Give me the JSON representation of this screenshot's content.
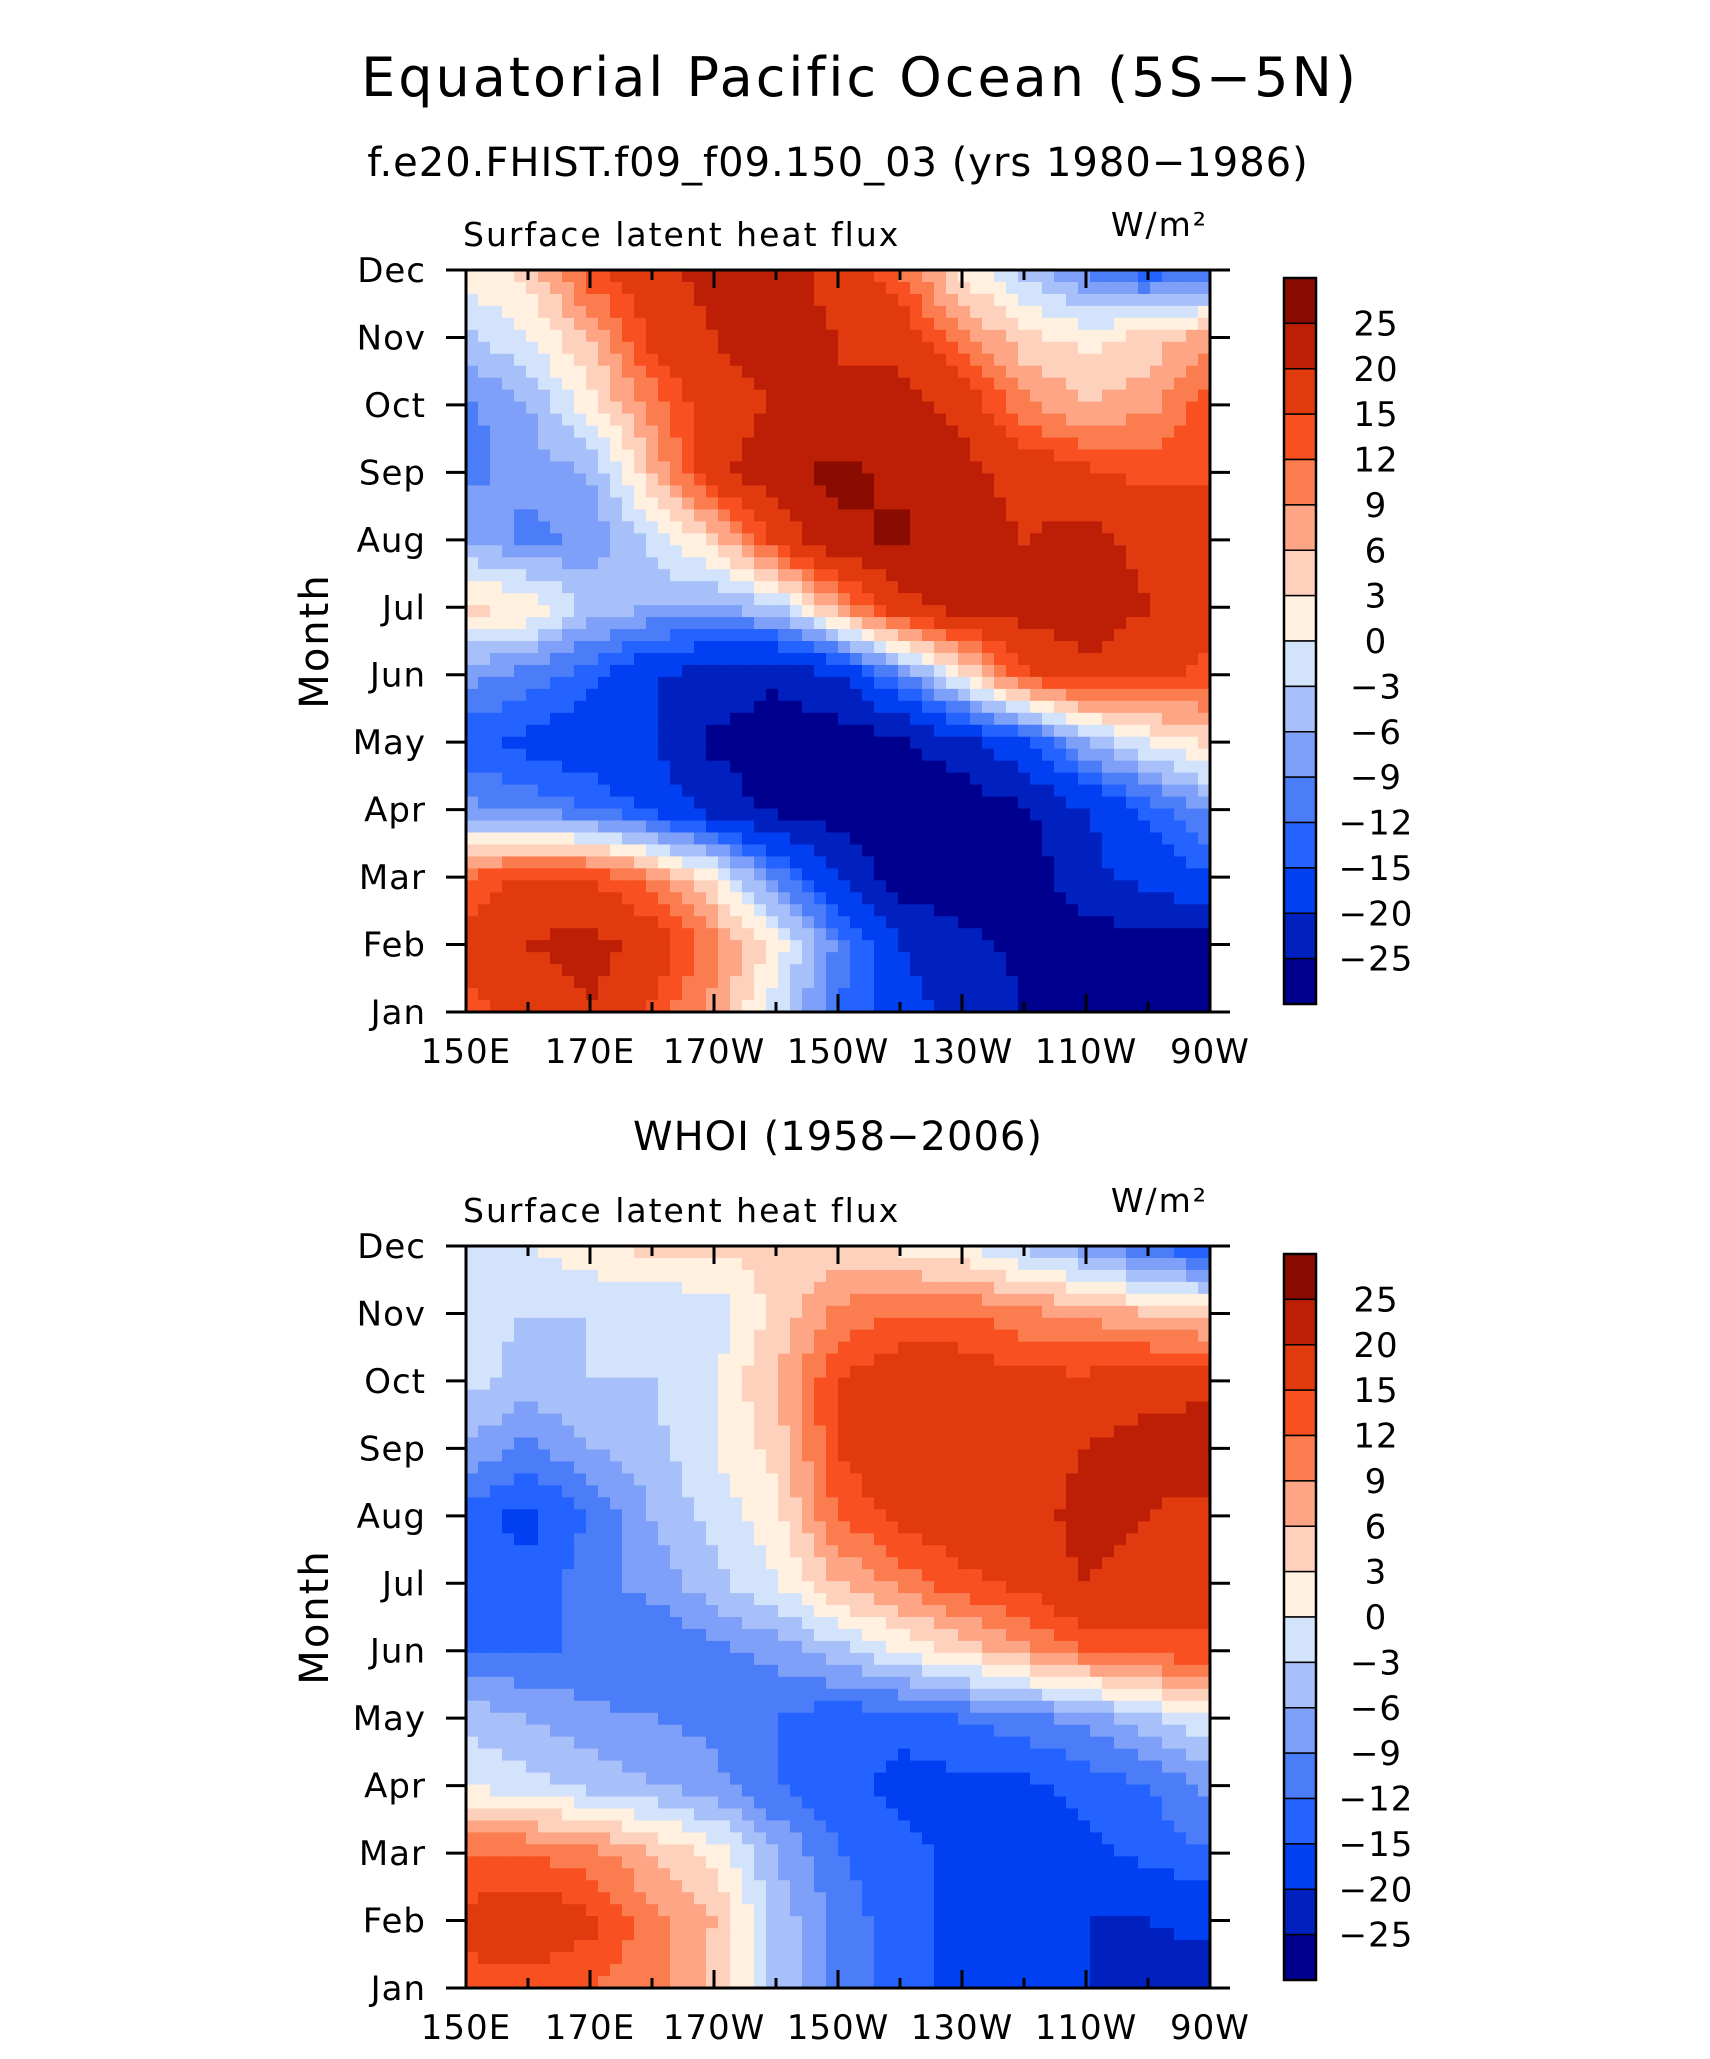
{
  "title": "Equatorial Pacific Ocean (5S−5N)",
  "colors": [
    "#00008f",
    "#0020bf",
    "#0040f2",
    "#2463ff",
    "#4c7df8",
    "#7ea0f8",
    "#a8c0fa",
    "#d4e3fc",
    "#fff0e0",
    "#fed1bc",
    "#fda584",
    "#fb7c4f",
    "#f85020",
    "#e23a0f",
    "#bd1f06",
    "#8a0c00"
  ],
  "chart_data": [
    {
      "type": "heatmap",
      "subtitle": "f.e20.FHIST.f09_f09.150_03 (yrs 1980−1986)",
      "panel_label": "Surface latent heat flux",
      "units": "W/m²",
      "xlabel": "",
      "ylabel": "Month",
      "x_ticks": [
        "150E",
        "170E",
        "170W",
        "150W",
        "130W",
        "110W",
        "90W"
      ],
      "y_ticks": [
        "Jan",
        "Feb",
        "Mar",
        "Apr",
        "May",
        "Jun",
        "Jul",
        "Aug",
        "Sep",
        "Oct",
        "Nov",
        "Dec"
      ],
      "colorbar_labels": [
        "25",
        "20",
        "15",
        "12",
        "9",
        "6",
        "3",
        "0",
        "−3",
        "−6",
        "−9",
        "−12",
        "−15",
        "−20",
        "−25"
      ],
      "levels": [
        -25,
        -20,
        -15,
        -12,
        -9,
        -6,
        -3,
        0,
        3,
        6,
        9,
        12,
        15,
        20,
        25
      ],
      "x": [
        "150E",
        "160E",
        "170E",
        "180",
        "170W",
        "160W",
        "150W",
        "140W",
        "130W",
        "120W",
        "110W",
        "100W",
        "90W"
      ],
      "y": [
        "Jan",
        "Feb",
        "Mar",
        "Apr",
        "May",
        "Jun",
        "Jul",
        "Aug",
        "Sep",
        "Oct",
        "Nov",
        "Dec"
      ],
      "values": [
        [
          14,
          16,
          20,
          14,
          8,
          -2,
          -12,
          -18,
          -22,
          -25,
          -27,
          -28,
          -28
        ],
        [
          16,
          20,
          22,
          18,
          10,
          2,
          -10,
          -20,
          -24,
          -26,
          -27,
          -28,
          -27
        ],
        [
          12,
          16,
          15,
          10,
          2,
          -10,
          -20,
          -28,
          -28,
          -28,
          -22,
          -18,
          -15
        ],
        [
          -8,
          -10,
          -12,
          -16,
          -22,
          -26,
          -28,
          -28,
          -28,
          -26,
          -20,
          -14,
          -8
        ],
        [
          -14,
          -16,
          -18,
          -20,
          -26,
          -28,
          -28,
          -26,
          -22,
          -16,
          -6,
          0,
          4
        ],
        [
          -8,
          -10,
          -14,
          -20,
          -22,
          -24,
          -20,
          -10,
          2,
          14,
          18,
          16,
          14
        ],
        [
          4,
          3,
          -4,
          -6,
          -6,
          -4,
          8,
          18,
          22,
          22,
          24,
          20,
          16
        ],
        [
          -6,
          -10,
          -8,
          -2,
          4,
          16,
          24,
          26,
          22,
          20,
          22,
          18,
          15
        ],
        [
          -10,
          -8,
          -6,
          6,
          18,
          24,
          26,
          24,
          22,
          18,
          16,
          14,
          15
        ],
        [
          -10,
          -6,
          2,
          10,
          18,
          20,
          20,
          22,
          18,
          10,
          6,
          8,
          14
        ],
        [
          -4,
          0,
          6,
          16,
          20,
          22,
          20,
          18,
          10,
          4,
          2,
          4,
          8
        ],
        [
          2,
          4,
          14,
          18,
          22,
          22,
          18,
          12,
          2,
          -4,
          -10,
          -14,
          -12
        ]
      ]
    },
    {
      "type": "heatmap",
      "subtitle": "WHOI (1958−2006)",
      "panel_label": "Surface latent heat flux",
      "units": "W/m²",
      "xlabel": "",
      "ylabel": "Month",
      "x_ticks": [
        "150E",
        "170E",
        "170W",
        "150W",
        "130W",
        "110W",
        "90W"
      ],
      "y_ticks": [
        "Jan",
        "Feb",
        "Mar",
        "Apr",
        "May",
        "Jun",
        "Jul",
        "Aug",
        "Sep",
        "Oct",
        "Nov",
        "Dec"
      ],
      "colorbar_labels": [
        "25",
        "20",
        "15",
        "12",
        "9",
        "6",
        "3",
        "0",
        "−3",
        "−6",
        "−9",
        "−12",
        "−15",
        "−20",
        "−25"
      ],
      "levels": [
        -25,
        -20,
        -15,
        -12,
        -9,
        -6,
        -3,
        0,
        3,
        6,
        9,
        12,
        15,
        20,
        25
      ],
      "x": [
        "150E",
        "160E",
        "170E",
        "180",
        "170W",
        "160W",
        "150W",
        "140W",
        "130W",
        "120W",
        "110W",
        "100W",
        "90W"
      ],
      "y": [
        "Jan",
        "Feb",
        "Mar",
        "Apr",
        "May",
        "Jun",
        "Jul",
        "Aug",
        "Sep",
        "Oct",
        "Nov",
        "Dec"
      ],
      "values": [
        [
          14,
          14,
          12,
          10,
          5,
          -4,
          -10,
          -14,
          -16,
          -18,
          -20,
          -22,
          -24
        ],
        [
          16,
          18,
          16,
          10,
          6,
          -4,
          -10,
          -14,
          -16,
          -18,
          -20,
          -20,
          -18
        ],
        [
          12,
          12,
          10,
          6,
          2,
          -6,
          -12,
          -14,
          -16,
          -16,
          -16,
          -14,
          -12
        ],
        [
          0,
          -2,
          -4,
          -6,
          -8,
          -12,
          -14,
          -16,
          -16,
          -16,
          -14,
          -12,
          -8
        ],
        [
          -4,
          -6,
          -8,
          -9,
          -10,
          -12,
          -14,
          -14,
          -12,
          -10,
          -8,
          -4,
          0
        ],
        [
          -12,
          -12,
          -12,
          -12,
          -10,
          -8,
          -4,
          0,
          4,
          8,
          12,
          14,
          14
        ],
        [
          -14,
          -14,
          -10,
          -8,
          -4,
          0,
          6,
          10,
          14,
          16,
          20,
          18,
          18
        ],
        [
          -14,
          -16,
          -12,
          -6,
          -2,
          2,
          12,
          16,
          18,
          18,
          22,
          20,
          18
        ],
        [
          -6,
          -10,
          -6,
          -4,
          0,
          4,
          15,
          20,
          20,
          16,
          20,
          22,
          24
        ],
        [
          -2,
          -4,
          -3,
          -3,
          0,
          6,
          15,
          18,
          18,
          16,
          16,
          18,
          18
        ],
        [
          -2,
          -3,
          -3,
          -3,
          -2,
          4,
          10,
          12,
          12,
          10,
          8,
          6,
          4
        ],
        [
          -2,
          0,
          2,
          4,
          4,
          4,
          4,
          2,
          0,
          -4,
          -8,
          -12,
          -16
        ]
      ]
    }
  ]
}
